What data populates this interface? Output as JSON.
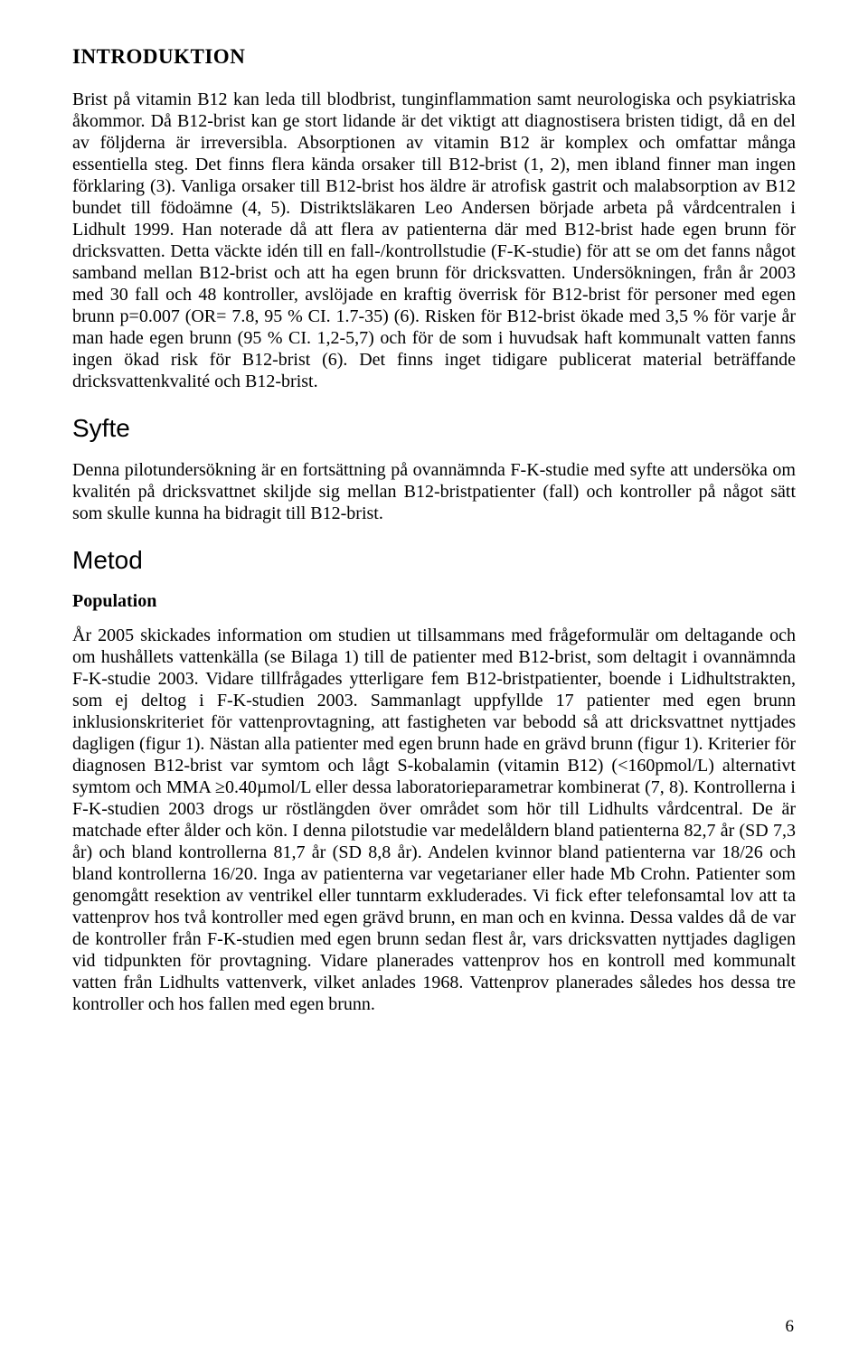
{
  "heading_intro": "INTRODUKTION",
  "para_intro": "Brist på vitamin B12 kan leda till blodbrist, tunginflammation samt neurologiska och psykiatriska åkommor. Då B12-brist kan ge stort lidande är det viktigt att diagnostisera bristen tidigt, då en del av följderna är irreversibla. Absorptionen av vitamin B12 är komplex och omfattar många essentiella steg. Det finns flera kända orsaker till B12-brist (1, 2), men ibland finner man ingen förklaring (3). Vanliga orsaker till B12-brist hos äldre är atrofisk gastrit och malabsorption av B12 bundet till födoämne (4, 5). Distriktsläkaren Leo Andersen började arbeta på vårdcentralen i Lidhult 1999. Han noterade då att flera av patienterna där med B12-brist hade egen brunn för dricksvatten. Detta väckte idén till en fall-/kontrollstudie (F-K-studie) för att se om det fanns något samband mellan B12-brist och att ha egen brunn för dricksvatten. Undersökningen, från år 2003 med 30 fall och 48 kontroller, avslöjade en kraftig överrisk för B12-brist för personer med egen brunn p=0.007 (OR= 7.8, 95 % CI. 1.7-35) (6). Risken för B12-brist ökade med 3,5 % för varje år man hade egen brunn (95 % CI. 1,2-5,7) och för de som i huvudsak haft kommunalt vatten fanns ingen ökad risk för B12-brist (6). Det finns inget tidigare publicerat material beträffande dricksvattenkvalité och B12-brist.",
  "heading_syfte": "Syfte",
  "para_syfte": "Denna pilotundersökning är en fortsättning på ovannämnda F-K-studie med syfte att undersöka om kvalitén på dricksvattnet skiljde sig mellan B12-bristpatienter (fall) och kontroller på något sätt som skulle kunna ha bidragit till B12-brist.",
  "heading_metod": "Metod",
  "subheading_population": "Population",
  "para_population": "År 2005 skickades information om studien ut tillsammans med frågeformulär om deltagande och om hushållets vattenkälla (se Bilaga 1) till de patienter med B12-brist, som deltagit i ovannämnda F-K-studie 2003. Vidare tillfrågades ytterligare fem B12-bristpatienter, boende i Lidhultstrakten, som ej deltog i F-K-studien 2003. Sammanlagt uppfyllde 17 patienter med egen brunn inklusionskriteriet för vattenprovtagning, att fastigheten var bebodd så att dricksvattnet nyttjades dagligen (figur 1). Nästan alla patienter med egen brunn hade en grävd brunn (figur 1). Kriterier för diagnosen B12-brist var symtom och lågt S-kobalamin (vitamin B12) (<160pmol/L) alternativt symtom och MMA ≥0.40µmol/L eller dessa laboratorieparametrar kombinerat (7, 8). Kontrollerna i F-K-studien 2003 drogs ur röstlängden över området som hör till Lidhults vårdcentral. De är matchade efter ålder och kön. I denna pilotstudie var medelåldern bland patienterna 82,7 år (SD 7,3 år) och bland kontrollerna 81,7 år (SD 8,8 år). Andelen kvinnor bland patienterna var 18/26 och bland kontrollerna 16/20. Inga av patienterna var vegetarianer eller hade Mb Crohn. Patienter som genomgått resektion av ventrikel eller tunntarm exkluderades. Vi fick efter telefonsamtal lov att ta vattenprov hos två kontroller med egen grävd brunn, en man och en kvinna. Dessa valdes då de var de kontroller från F-K-studien med egen brunn sedan flest år, vars dricksvatten nyttjades dagligen vid tidpunkten för provtagning. Vidare planerades vattenprov hos en kontroll med kommunalt vatten från Lidhults vattenverk, vilket anlades 1968. Vattenprov planerades således hos dessa tre kontroller och hos fallen med egen brunn.",
  "page_number": "6"
}
